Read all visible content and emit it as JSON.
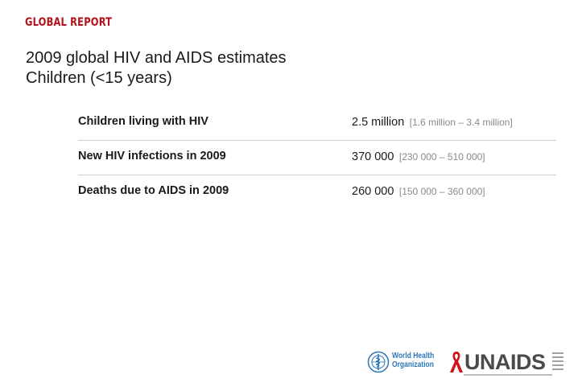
{
  "header": {
    "report_label": "GLOBAL REPORT",
    "title_line1": "2009 global HIV and AIDS estimates",
    "title_line2": "Children (<15 years)"
  },
  "stats": [
    {
      "label": "Children living with HIV",
      "value": "2.5 million",
      "range": "[1.6 million – 3.4 million]"
    },
    {
      "label": "New HIV infections in 2009",
      "value": "370 000",
      "range": "[230 000 – 510 000]"
    },
    {
      "label": "Deaths due to AIDS in 2009",
      "value": "260 000",
      "range": "[150 000 – 360 000]"
    }
  ],
  "logos": {
    "who_line1": "World Health",
    "who_line2": "Organization",
    "unaids_name": "UNAIDS",
    "who_color": "#2f76b7",
    "ribbon_color": "#d0121c",
    "report_color": "#b1121b"
  }
}
